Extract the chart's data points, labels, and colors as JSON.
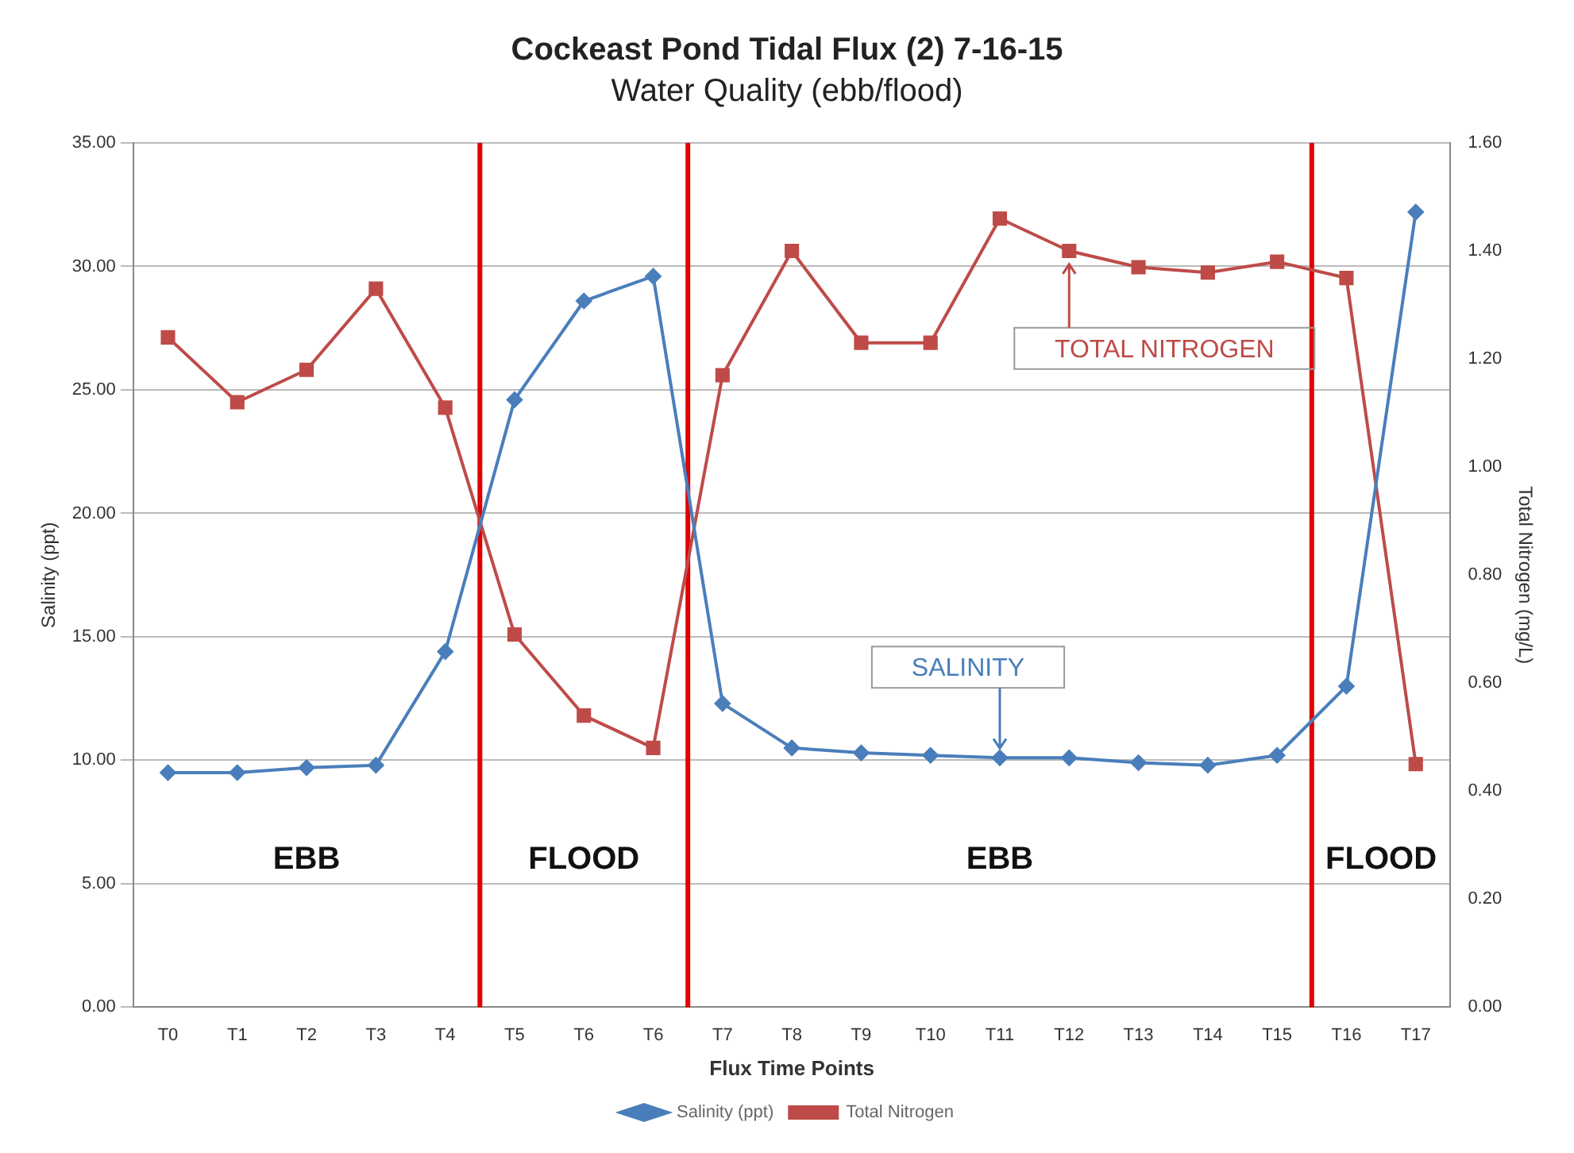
{
  "chart_data": {
    "type": "line",
    "title": "Cockeast Pond Tidal Flux (2) 7-16-15",
    "subtitle": "Water Quality (ebb/flood)",
    "xlabel": "Flux Time Points",
    "ylabel": "Salinity (ppt)",
    "y2label": "Total Nitrogen (mg/L)",
    "categories": [
      "T0",
      "T1",
      "T2",
      "T3",
      "T4",
      "T5",
      "T6",
      "T6",
      "T7",
      "T8",
      "T9",
      "T10",
      "T11",
      "T12",
      "T13",
      "T14",
      "T15",
      "T16",
      "T17"
    ],
    "series": [
      {
        "name": "Salinity (ppt)",
        "color": "#4a7ebb",
        "marker": "diamond",
        "values": [
          9.5,
          9.5,
          9.7,
          9.8,
          14.4,
          24.6,
          28.6,
          29.6,
          12.3,
          10.5,
          10.3,
          10.2,
          10.1,
          10.1,
          9.9,
          9.8,
          10.2,
          13.0,
          32.2
        ]
      },
      {
        "name": "Total Nitrogen",
        "color": "#be4b48",
        "marker": "square",
        "axis": "y2",
        "values": [
          1.24,
          1.12,
          1.18,
          1.33,
          1.11,
          0.69,
          0.54,
          0.48,
          1.17,
          1.4,
          1.23,
          1.23,
          1.46,
          1.4,
          1.37,
          1.36,
          1.38,
          1.35,
          0.45
        ]
      }
    ],
    "ylim": [
      0,
      35
    ],
    "yticks": [
      {
        "value": 0,
        "label": "0.00"
      },
      {
        "value": 5,
        "label": "5.00"
      },
      {
        "value": 10,
        "label": "10.00"
      },
      {
        "value": 15,
        "label": "15.00"
      },
      {
        "value": 20,
        "label": "20.00"
      },
      {
        "value": 25,
        "label": "25.00"
      },
      {
        "value": 30,
        "label": "30.00"
      },
      {
        "value": 35,
        "label": "35.00"
      }
    ],
    "y2lim": [
      0,
      1.6
    ],
    "y2ticks": [
      {
        "value": 0,
        "label": "0.00"
      },
      {
        "value": 0.2,
        "label": "0.20"
      },
      {
        "value": 0.4,
        "label": "0.40"
      },
      {
        "value": 0.6,
        "label": "0.60"
      },
      {
        "value": 0.8,
        "label": "0.80"
      },
      {
        "value": 1,
        "label": "1.00"
      },
      {
        "value": 1.2,
        "label": "1.20"
      },
      {
        "value": 1.4,
        "label": "1.40"
      },
      {
        "value": 1.6,
        "label": "1.60"
      }
    ],
    "grid": "y",
    "legend": "bottom",
    "annotations": [
      "EBB",
      "FLOOD",
      "EBB",
      "FLOOD",
      {
        "text": "TOTAL NITROGEN",
        "x": "T12",
        "y": 30.6
      },
      {
        "text": "SALINITY",
        "x": "T11",
        "y": 10.1
      }
    ]
  }
}
